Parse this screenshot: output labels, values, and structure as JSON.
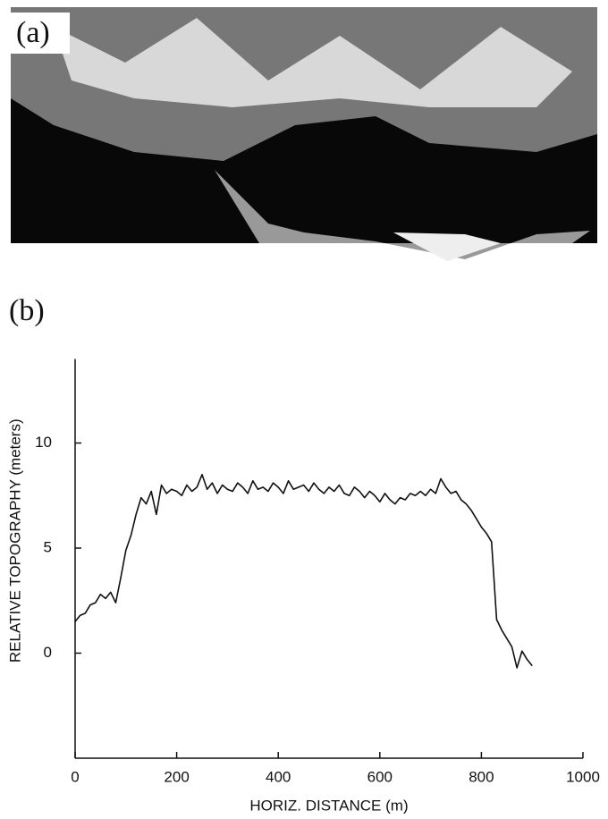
{
  "panel_a": {
    "label": "(a)"
  },
  "chart_data": {
    "type": "line",
    "panel_label": "(b)",
    "x_label": "HORIZ. DISTANCE (m)",
    "y_label": "RELATIVE TOPOGRAPHY (meters)",
    "xlim": [
      0,
      1000
    ],
    "xticks": [
      0,
      200,
      400,
      600,
      800,
      1000
    ],
    "ylim": [
      -5,
      14
    ],
    "yticks": [
      0,
      5,
      10
    ],
    "grid": false,
    "x": [
      0,
      10,
      20,
      30,
      40,
      50,
      60,
      70,
      80,
      90,
      100,
      110,
      120,
      130,
      140,
      150,
      160,
      170,
      180,
      190,
      200,
      210,
      220,
      230,
      240,
      250,
      260,
      270,
      280,
      290,
      300,
      310,
      320,
      330,
      340,
      350,
      360,
      370,
      380,
      390,
      400,
      410,
      420,
      430,
      440,
      450,
      460,
      470,
      480,
      490,
      500,
      510,
      520,
      530,
      540,
      550,
      560,
      570,
      580,
      590,
      600,
      610,
      620,
      630,
      640,
      650,
      660,
      670,
      680,
      690,
      700,
      710,
      720,
      730,
      740,
      750,
      760,
      770,
      780,
      790,
      800,
      810,
      820,
      830,
      840,
      850,
      860,
      870,
      880,
      890,
      900
    ],
    "series": [
      {
        "color": "#111111",
        "values": [
          1.5,
          1.8,
          1.9,
          2.3,
          2.4,
          2.8,
          2.6,
          2.9,
          2.4,
          3.6,
          4.9,
          5.6,
          6.6,
          7.4,
          7.1,
          7.7,
          6.6,
          8.0,
          7.6,
          7.8,
          7.7,
          7.5,
          8.0,
          7.7,
          7.9,
          8.5,
          7.8,
          8.1,
          7.6,
          8.0,
          7.8,
          7.7,
          8.1,
          7.9,
          7.6,
          8.2,
          7.8,
          7.9,
          7.7,
          8.1,
          7.9,
          7.6,
          8.2,
          7.8,
          7.9,
          8.0,
          7.7,
          8.1,
          7.8,
          7.6,
          7.9,
          7.7,
          8.0,
          7.6,
          7.5,
          7.9,
          7.7,
          7.4,
          7.7,
          7.5,
          7.2,
          7.6,
          7.3,
          7.1,
          7.4,
          7.3,
          7.6,
          7.5,
          7.7,
          7.5,
          7.8,
          7.6,
          8.3,
          7.9,
          7.6,
          7.7,
          7.3,
          7.1,
          6.8,
          6.4,
          6.0,
          5.7,
          5.3,
          1.6,
          1.1,
          0.7,
          0.3,
          -0.7,
          0.1,
          -0.3,
          -0.6
        ]
      }
    ]
  }
}
